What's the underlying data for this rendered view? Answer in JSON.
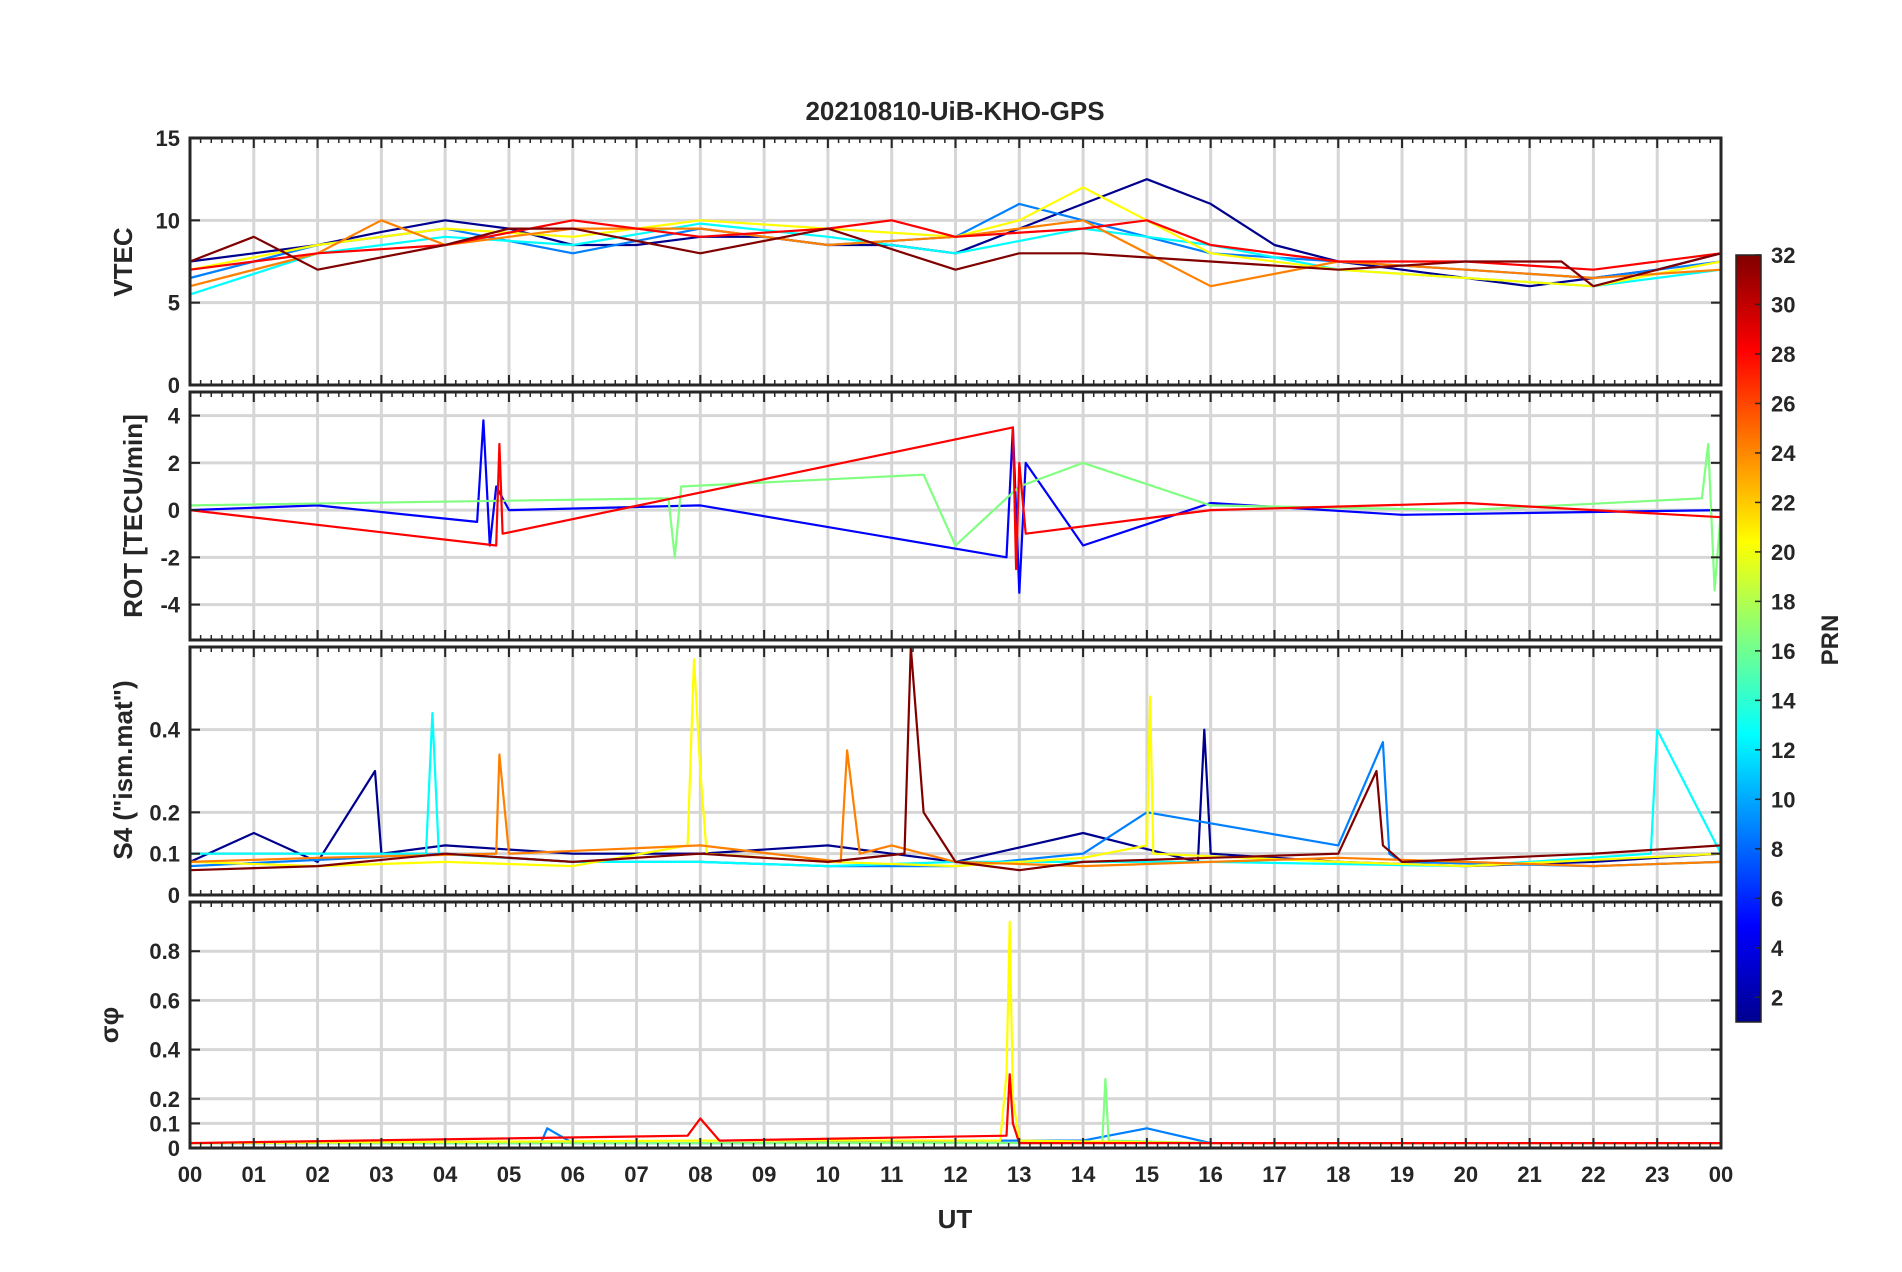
{
  "chart_data": {
    "type": "line",
    "title": "20210810-UiB-KHO-GPS",
    "xlabel": "UT",
    "x_tick_labels": [
      "00",
      "01",
      "02",
      "03",
      "04",
      "05",
      "06",
      "07",
      "08",
      "09",
      "10",
      "11",
      "12",
      "13",
      "14",
      "15",
      "16",
      "17",
      "18",
      "19",
      "20",
      "21",
      "22",
      "23",
      "00"
    ],
    "xlim": [
      0,
      24
    ],
    "colorbar": {
      "label": "PRN",
      "range": [
        1,
        32
      ],
      "tick_labels": [
        "2",
        "4",
        "6",
        "8",
        "10",
        "12",
        "14",
        "16",
        "18",
        "20",
        "22",
        "24",
        "26",
        "28",
        "30",
        "32"
      ],
      "colormap": [
        "#00008f",
        "#0000ff",
        "#0080ff",
        "#00ffff",
        "#80ff80",
        "#ffff00",
        "#ff8000",
        "#ff0000",
        "#800000"
      ]
    },
    "panels": [
      {
        "id": "vtec",
        "ylabel": "VTEC",
        "ylim": [
          0,
          15
        ],
        "y_tick_labels": [
          "0",
          "5",
          "10",
          "15"
        ],
        "grid": true,
        "series": [
          {
            "prn": 2,
            "x": [
              0,
              1,
              2,
              3,
              4,
              5,
              6,
              7,
              8,
              9,
              10,
              11,
              12,
              13,
              14,
              15,
              16,
              17,
              18,
              19,
              20,
              21,
              22,
              23,
              24
            ],
            "y": [
              7.5,
              8,
              8.5,
              9.3,
              10,
              9.5,
              8.5,
              8.5,
              9,
              9,
              8.5,
              8.5,
              8,
              9.5,
              11,
              12.5,
              11,
              8.5,
              7.5,
              7,
              6.5,
              6,
              6.5,
              7,
              8
            ]
          },
          {
            "prn": 8,
            "x": [
              0,
              2,
              4,
              6,
              8,
              10,
              12,
              13,
              14,
              15,
              16,
              18,
              20,
              22,
              24
            ],
            "y": [
              6.5,
              8.5,
              9.5,
              8,
              9.5,
              8.5,
              9,
              11,
              10,
              9,
              8,
              7.5,
              7,
              6.5,
              7.5
            ]
          },
          {
            "prn": 14,
            "x": [
              0,
              2,
              4,
              6,
              8,
              10,
              12,
              14,
              16,
              18,
              20,
              22,
              24
            ],
            "y": [
              5.5,
              8,
              9,
              8.5,
              9.8,
              9,
              8,
              9.5,
              8.5,
              7,
              6.5,
              6,
              7
            ]
          },
          {
            "prn": 19,
            "x": [
              0,
              2,
              4,
              6,
              8,
              10,
              12,
              13,
              14,
              16,
              18,
              20,
              22,
              24
            ],
            "y": [
              7,
              8.5,
              9.5,
              9,
              10,
              9.5,
              9,
              10,
              12,
              8,
              7,
              6.5,
              6,
              7.5
            ]
          },
          {
            "prn": 23,
            "x": [
              0,
              2,
              3,
              4,
              6,
              8,
              10,
              12,
              14,
              15,
              16,
              18,
              20,
              22,
              24
            ],
            "y": [
              6,
              8,
              10,
              8.5,
              9.5,
              9.5,
              8.5,
              9,
              10,
              8,
              6,
              7.5,
              7,
              6.5,
              7
            ]
          },
          {
            "prn": 27,
            "x": [
              0,
              2,
              4,
              6,
              8,
              10,
              11,
              12,
              14,
              15,
              16,
              18,
              20,
              22,
              24
            ],
            "y": [
              7,
              8,
              8.5,
              10,
              9,
              9.5,
              10,
              9,
              9.5,
              10,
              8.5,
              7.5,
              7.5,
              7,
              8
            ]
          },
          {
            "prn": 31,
            "x": [
              0,
              1,
              2,
              4,
              5,
              6,
              8,
              10,
              12,
              13,
              14,
              16,
              18,
              20,
              21.5,
              22,
              24
            ],
            "y": [
              7.5,
              9,
              7,
              8.5,
              9.5,
              9.5,
              8,
              9.5,
              7,
              8,
              8,
              7.5,
              7,
              7.5,
              7.5,
              6,
              8
            ]
          }
        ]
      },
      {
        "id": "rot",
        "ylabel": "ROT [TECU/min]",
        "ylim": [
          -5.5,
          5
        ],
        "y_tick_labels": [
          "4",
          "2",
          "0",
          "-2",
          "-4"
        ],
        "grid": true,
        "series": [
          {
            "prn": 3,
            "x": [
              0,
              2,
              4.5,
              4.6,
              4.7,
              4.8,
              5,
              8,
              12.8,
              12.9,
              13,
              13.1,
              14,
              16,
              19,
              24
            ],
            "y": [
              0,
              0.2,
              -0.5,
              3.8,
              -1.5,
              1,
              0,
              0.2,
              -2,
              3.5,
              -3.5,
              2,
              -1.5,
              0.3,
              -0.2,
              0
            ]
          },
          {
            "prn": 18,
            "x": [
              0,
              7.5,
              7.6,
              7.7,
              11.5,
              12,
              13,
              14,
              16,
              20,
              23.7,
              23.8,
              23.9,
              24
            ],
            "y": [
              0.2,
              0.5,
              -2,
              1,
              1.5,
              -1.5,
              1,
              2,
              0.2,
              0,
              0.5,
              2.8,
              -3.4,
              0
            ]
          },
          {
            "prn": 29,
            "x": [
              0,
              4.8,
              4.85,
              4.9,
              12.9,
              12.95,
              13,
              13.1,
              16,
              20,
              24
            ],
            "y": [
              0,
              -1.5,
              2.8,
              -1,
              3.5,
              -2.5,
              2,
              -1,
              0,
              0.3,
              -0.3
            ]
          }
        ]
      },
      {
        "id": "s4",
        "ylabel": "S4 (\"ism.mat\")",
        "ylim": [
          0,
          0.6
        ],
        "y_tick_labels": [
          "0",
          "0.1",
          "0.2",
          "0.4"
        ],
        "grid": true,
        "series": [
          {
            "prn": 2,
            "x": [
              0,
              1,
              2,
              2.9,
              3,
              4,
              6,
              8,
              10,
              12,
              14,
              15.8,
              15.9,
              16,
              18,
              20,
              22,
              24
            ],
            "y": [
              0.08,
              0.15,
              0.08,
              0.3,
              0.1,
              0.12,
              0.1,
              0.1,
              0.12,
              0.08,
              0.15,
              0.08,
              0.4,
              0.1,
              0.08,
              0.07,
              0.08,
              0.1
            ]
          },
          {
            "prn": 9,
            "x": [
              0,
              4,
              6,
              8,
              10,
              12,
              14,
              15,
              18,
              18.7,
              18.8,
              19,
              22,
              24
            ],
            "y": [
              0.07,
              0.1,
              0.08,
              0.08,
              0.07,
              0.07,
              0.1,
              0.2,
              0.12,
              0.37,
              0.1,
              0.08,
              0.07,
              0.08
            ]
          },
          {
            "prn": 13,
            "x": [
              0,
              3.7,
              3.8,
              3.9,
              6,
              8,
              10,
              12,
              14,
              16,
              20,
              22.9,
              23,
              24
            ],
            "y": [
              0.1,
              0.1,
              0.44,
              0.1,
              0.08,
              0.08,
              0.07,
              0.08,
              0.08,
              0.08,
              0.07,
              0.1,
              0.4,
              0.1
            ]
          },
          {
            "prn": 21,
            "x": [
              0,
              2,
              4,
              6,
              7.8,
              7.9,
              8,
              8.1,
              10,
              12,
              14,
              15,
              15.05,
              15.1,
              18,
              20,
              24
            ],
            "y": [
              0.08,
              0.07,
              0.08,
              0.07,
              0.12,
              0.57,
              0.3,
              0.1,
              0.08,
              0.07,
              0.09,
              0.12,
              0.48,
              0.1,
              0.08,
              0.07,
              0.1
            ]
          },
          {
            "prn": 26,
            "x": [
              0,
              2,
              4.8,
              4.85,
              5,
              8,
              10.2,
              10.3,
              10.5,
              11,
              12,
              14,
              16,
              18,
              20,
              22,
              24
            ],
            "y": [
              0.08,
              0.09,
              0.1,
              0.34,
              0.1,
              0.12,
              0.08,
              0.35,
              0.1,
              0.12,
              0.08,
              0.07,
              0.08,
              0.09,
              0.08,
              0.07,
              0.08
            ]
          },
          {
            "prn": 31,
            "x": [
              0,
              2,
              4,
              6,
              8,
              10,
              11.2,
              11.3,
              11.5,
              12,
              13,
              14,
              16,
              18,
              18.6,
              18.7,
              19,
              22,
              24
            ],
            "y": [
              0.06,
              0.07,
              0.1,
              0.08,
              0.1,
              0.08,
              0.1,
              0.6,
              0.2,
              0.08,
              0.06,
              0.08,
              0.09,
              0.1,
              0.3,
              0.12,
              0.08,
              0.1,
              0.12
            ]
          }
        ]
      },
      {
        "id": "sigma",
        "ylabel": "σφ",
        "ylim": [
          0,
          1
        ],
        "y_tick_labels": [
          "0",
          "0.1",
          "0.2",
          "0.4",
          "0.6",
          "0.8"
        ],
        "grid": true,
        "series": [
          {
            "prn": 9,
            "x": [
              0,
              5.5,
              5.6,
              6,
              9,
              12,
              14,
              15,
              16,
              24
            ],
            "y": [
              0.02,
              0.02,
              0.08,
              0.02,
              0.02,
              0.03,
              0.03,
              0.08,
              0.02,
              0.02
            ]
          },
          {
            "prn": 17,
            "x": [
              0,
              12,
              14.3,
              14.35,
              14.4,
              16,
              24
            ],
            "y": [
              0.02,
              0.02,
              0.02,
              0.28,
              0.03,
              0.02,
              0.02
            ]
          },
          {
            "prn": 21,
            "x": [
              0,
              8,
              12.7,
              12.8,
              12.85,
              12.9,
              13,
              16,
              24
            ],
            "y": [
              0.02,
              0.03,
              0.03,
              0.3,
              0.92,
              0.2,
              0.03,
              0.02,
              0.02
            ]
          },
          {
            "prn": 30,
            "x": [
              0,
              7.8,
              8,
              8.3,
              12.8,
              12.85,
              12.9,
              13,
              24
            ],
            "y": [
              0.02,
              0.05,
              0.12,
              0.03,
              0.05,
              0.3,
              0.1,
              0.02,
              0.02
            ]
          }
        ]
      }
    ]
  }
}
